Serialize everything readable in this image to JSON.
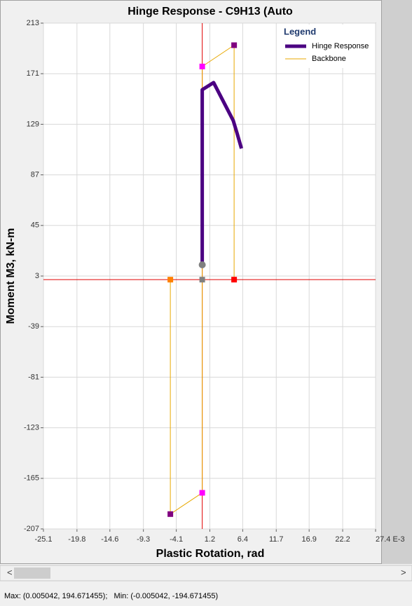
{
  "chart_data": {
    "type": "line",
    "title": "Hinge Response - C9H13 (Auto",
    "xlabel": "Plastic Rotation, rad",
    "ylabel": "Moment M3, kN-m",
    "legend_title": "Legend",
    "legend": "upper right",
    "grid": true,
    "xlim": [
      -25.1,
      27.4
    ],
    "xticks": [
      -25.1,
      -19.8,
      -14.6,
      -9.3,
      -4.1,
      1.2,
      6.4,
      11.7,
      16.9,
      22.2,
      {
        "value": 27.4,
        "label": "27.4 E-3"
      }
    ],
    "ylim": [
      -207,
      213
    ],
    "yticks": [
      213,
      171,
      129,
      87,
      45,
      3,
      -39,
      -81,
      -123,
      -165,
      -207
    ],
    "series": [
      {
        "name": "Hinge Response",
        "color": "#4b0082",
        "x": [
          0,
          0,
          1.8,
          4.9,
          5.5,
          6.2
        ],
        "values": [
          12.3,
          157.7,
          163.6,
          132.1,
          121.7,
          108.9
        ]
      },
      {
        "name": "Backbone",
        "color": "#e8a800",
        "x": [
          -5.04,
          -5.04,
          0,
          0,
          0,
          5.04,
          5.04
        ],
        "values": [
          0,
          -194.67,
          -177,
          0,
          177,
          194.67,
          0
        ],
        "marker_colors": [
          "#ff8000",
          "#800080",
          "#ff00ff",
          "#808080",
          "#ff00ff",
          "#800080",
          "#ff0000"
        ]
      }
    ]
  },
  "status": "Max: (0.005042, 194.671455);   Min: (-0.005042, -194.671455)"
}
